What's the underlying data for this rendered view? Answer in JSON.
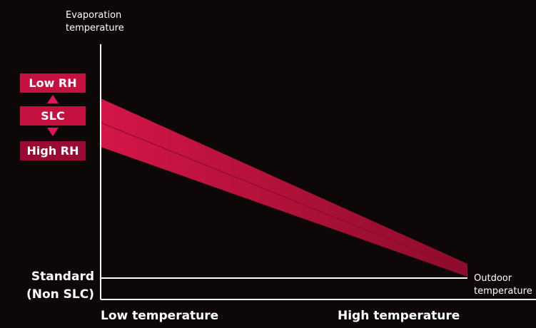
{
  "colors": {
    "background": "#0d0708",
    "axis": "#ffffff",
    "band_light": "#d41647",
    "band_dark": "#8c0c2c",
    "badge_light": "#c4113f",
    "badge_dark": "#9a0b33",
    "arrow": "#e0155a"
  },
  "y_axis": {
    "title_line1": "Evaporation",
    "title_line2": "temperature"
  },
  "x_axis": {
    "title_line1": "Outdoor",
    "title_line2": "temperature",
    "low_label": "Low temperature",
    "high_label": "High temperature"
  },
  "standard_label": {
    "line1": "Standard",
    "line2": "(Non SLC)"
  },
  "legend": {
    "low_rh": "Low RH",
    "slc": "SLC",
    "high_rh": "High RH",
    "arrow_up": "triangle-up-icon",
    "arrow_down": "triangle-down-icon"
  }
}
